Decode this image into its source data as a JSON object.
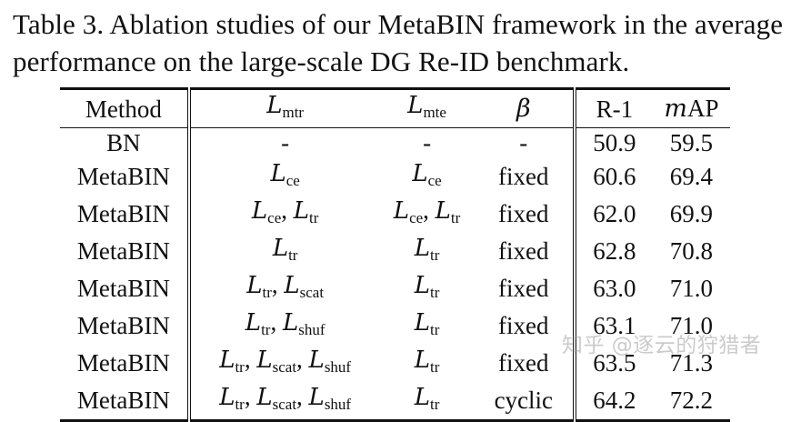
{
  "caption": "Table 3. Ablation studies of our MetaBIN framework in the average performance on the large-scale DG Re-ID benchmark.",
  "header": {
    "method": "Method",
    "l_mtr_base": "L",
    "l_mtr_sub": "mtr",
    "l_mte_base": "L",
    "l_mte_sub": "mte",
    "beta": "β",
    "r1": "R-1",
    "map_m": "m",
    "map_rest": "AP"
  },
  "rows": [
    {
      "method": "BN",
      "mtr": "-",
      "mte": "-",
      "beta": "-",
      "r1": "50.9",
      "map": "59.5"
    },
    {
      "method": "MetaBIN",
      "mtr_terms": [
        "ce"
      ],
      "mte_terms": [
        "ce"
      ],
      "beta": "fixed",
      "r1": "60.6",
      "map": "69.4"
    },
    {
      "method": "MetaBIN",
      "mtr_terms": [
        "ce",
        "tr"
      ],
      "mte_terms": [
        "ce",
        "tr"
      ],
      "beta": "fixed",
      "r1": "62.0",
      "map": "69.9"
    },
    {
      "method": "MetaBIN",
      "mtr_terms": [
        "tr"
      ],
      "mte_terms": [
        "tr"
      ],
      "beta": "fixed",
      "r1": "62.8",
      "map": "70.8"
    },
    {
      "method": "MetaBIN",
      "mtr_terms": [
        "tr",
        "scat"
      ],
      "mte_terms": [
        "tr"
      ],
      "beta": "fixed",
      "r1": "63.0",
      "map": "71.0"
    },
    {
      "method": "MetaBIN",
      "mtr_terms": [
        "tr",
        "shuf"
      ],
      "mte_terms": [
        "tr"
      ],
      "beta": "fixed",
      "r1": "63.1",
      "map": "71.0"
    },
    {
      "method": "MetaBIN",
      "mtr_terms": [
        "tr",
        "scat",
        "shuf"
      ],
      "mte_terms": [
        "tr"
      ],
      "beta": "fixed",
      "r1": "63.5",
      "map": "71.3"
    },
    {
      "method": "MetaBIN",
      "mtr_terms": [
        "tr",
        "scat",
        "shuf"
      ],
      "mte_terms": [
        "tr"
      ],
      "beta": "cyclic",
      "r1": "64.2",
      "map": "72.2",
      "bold": true
    }
  ],
  "watermark": "知乎 @逐云的狩猎者"
}
